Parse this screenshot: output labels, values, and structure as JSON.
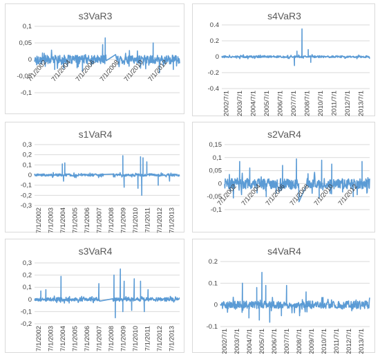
{
  "chart_data": [
    {
      "type": "line",
      "title": "s3VaR3",
      "ylim": [
        -0.1,
        0.1
      ],
      "yticks": [
        "0,1",
        "0,05",
        "0",
        "-0,05",
        "-0,1"
      ],
      "yvals": [
        0.1,
        0.05,
        0,
        -0.05,
        -0.1
      ],
      "xticks": [
        "7/1/2002",
        "7/1/2004",
        "7/1/2006",
        "7/1/2008",
        "7/1/2010",
        "7/1/2012"
      ],
      "x_start": 2002.5,
      "x_end": 2014,
      "noise": 0.013,
      "spikes": [
        [
          2007.9,
          0.045
        ],
        [
          2008.1,
          0.065
        ],
        [
          2011.9,
          0.05
        ],
        [
          2004.1,
          -0.03
        ],
        [
          2006.3,
          -0.035
        ],
        [
          2012.4,
          -0.04
        ],
        [
          2013.5,
          -0.03
        ]
      ],
      "gap": [
        2008.2,
        2008.9
      ],
      "series": [
        {
          "color": "#5b9bd5"
        }
      ]
    },
    {
      "type": "line",
      "title": "s4VaR3",
      "ylim": [
        -0.4,
        0.4
      ],
      "yticks": [
        "0.4",
        "0.2",
        "0",
        "-0.2",
        "-0.4"
      ],
      "yvals": [
        0.4,
        0.2,
        0,
        -0.2,
        -0.4
      ],
      "xticks": [
        "2002/7/1",
        "2003/7/1",
        "2004/7/1",
        "2005/7/1",
        "2006/7/1",
        "2007/7/1",
        "2008/7/1",
        "2010/7/1",
        "2011/7/1",
        "2012/7/1",
        "2013/7/1"
      ],
      "x_start": 2002.5,
      "x_end": 2014.3,
      "noise": 0.012,
      "spikes": [
        [
          2008.9,
          0.35
        ],
        [
          2008.5,
          0.07
        ],
        [
          2009.4,
          0.09
        ],
        [
          2008.3,
          -0.11
        ],
        [
          2009.6,
          -0.07
        ]
      ],
      "gap": null,
      "series": [
        {
          "color": "#5b9bd5"
        }
      ]
    },
    {
      "type": "line",
      "title": "s1VaR4",
      "ylim": [
        -0.3,
        0.3
      ],
      "yticks": [
        "0,3",
        "0,2",
        "0,1",
        "0",
        "-0,1",
        "-0,2",
        "-0,3"
      ],
      "yvals": [
        0.3,
        0.2,
        0.1,
        0,
        -0.1,
        -0.2,
        -0.3
      ],
      "xticks": [
        "7/1/2002",
        "7/1/2003",
        "7/1/2004",
        "7/1/2005",
        "7/1/2006",
        "7/1/2007",
        "7/1/2008",
        "7/1/2009",
        "7/1/2010",
        "7/1/2011",
        "7/1/2012",
        "7/1/2013"
      ],
      "x_start": 2002.5,
      "x_end": 2014,
      "noise": 0.012,
      "spikes": [
        [
          2004.7,
          0.11
        ],
        [
          2004.9,
          0.12
        ],
        [
          2009.5,
          0.19
        ],
        [
          2010.9,
          0.18
        ],
        [
          2011.1,
          0.17
        ],
        [
          2011.4,
          0.13
        ],
        [
          2004.8,
          -0.06
        ],
        [
          2009.6,
          -0.12
        ],
        [
          2010.7,
          -0.13
        ],
        [
          2011.0,
          -0.2
        ],
        [
          2012.3,
          -0.1
        ],
        [
          2013.2,
          -0.06
        ]
      ],
      "gap": [
        2008.0,
        2008.7
      ],
      "series": [
        {
          "color": "#5b9bd5"
        }
      ]
    },
    {
      "type": "line",
      "title": "s2VaR4",
      "ylim": [
        -0.1,
        0.15
      ],
      "yticks": [
        "0,15",
        "0,1",
        "0,05",
        "0",
        "-0,05",
        "-0,1"
      ],
      "yvals": [
        0.15,
        0.1,
        0.05,
        0,
        -0.05,
        -0.1
      ],
      "xticks": [
        "7/1/2002",
        "7/1/2004",
        "7/1/2006",
        "7/1/2008",
        "7/1/2010",
        "7/1/2012"
      ],
      "x_start": 2002.5,
      "x_end": 2014,
      "noise": 0.02,
      "spikes": [
        [
          2003.7,
          0.085
        ],
        [
          2004.5,
          0.06
        ],
        [
          2007.1,
          0.07
        ],
        [
          2008.2,
          0.095
        ],
        [
          2010.2,
          0.09
        ],
        [
          2011.0,
          0.075
        ],
        [
          2013.4,
          0.085
        ],
        [
          2003.2,
          -0.055
        ],
        [
          2005.8,
          -0.05
        ],
        [
          2008.4,
          -0.07
        ],
        [
          2010.0,
          -0.055
        ],
        [
          2012.7,
          -0.05
        ]
      ],
      "gap": [
        2008.4,
        2009.0
      ],
      "series": [
        {
          "color": "#5b9bd5"
        }
      ]
    },
    {
      "type": "line",
      "title": "s3VaR4",
      "ylim": [
        -0.2,
        0.3
      ],
      "yticks": [
        "0,3",
        "0,2",
        "0,1",
        "0",
        "-0,1",
        "-0,2"
      ],
      "yvals": [
        0.3,
        0.2,
        0.1,
        0,
        -0.1,
        -0.2
      ],
      "xticks": [
        "7/1/2002",
        "7/1/2003",
        "7/1/2004",
        "7/1/2005",
        "7/1/2006",
        "7/1/2007",
        "7/1/2008",
        "7/1/2009",
        "7/1/2010",
        "7/1/2011",
        "7/1/2012",
        "7/1/2013"
      ],
      "x_start": 2002.5,
      "x_end": 2014,
      "noise": 0.015,
      "spikes": [
        [
          2004.6,
          0.19
        ],
        [
          2003.0,
          0.07
        ],
        [
          2003.4,
          0.08
        ],
        [
          2007.6,
          0.13
        ],
        [
          2008.8,
          0.2
        ],
        [
          2009.3,
          0.25
        ],
        [
          2009.6,
          0.15
        ],
        [
          2010.4,
          0.17
        ],
        [
          2010.9,
          0.15
        ],
        [
          2011.5,
          0.08
        ],
        [
          2008.9,
          -0.15
        ],
        [
          2009.5,
          -0.1
        ],
        [
          2010.2,
          -0.09
        ],
        [
          2011.2,
          -0.1
        ]
      ],
      "gap": [
        2007.7,
        2008.7
      ],
      "series": [
        {
          "color": "#5b9bd5"
        }
      ]
    },
    {
      "type": "line",
      "title": "s4VaR4",
      "ylim": [
        -0.1,
        0.2
      ],
      "yticks": [
        "0.2",
        "0.1",
        "0",
        "-0.1"
      ],
      "yvals": [
        0.2,
        0.1,
        0,
        -0.1
      ],
      "xticks": [
        "2002/7/1",
        "2003/7/1",
        "2004/7/1",
        "2005/7/1",
        "2006/7/1",
        "2007/7/1",
        "2008/7/1",
        "2009/7/1",
        "2010/7/1",
        "2011/7/1",
        "2012/7/1",
        "2013/7/1"
      ],
      "x_start": 2002.5,
      "x_end": 2014,
      "noise": 0.018,
      "spikes": [
        [
          2004.2,
          0.1
        ],
        [
          2005.3,
          0.08
        ],
        [
          2005.7,
          0.15
        ],
        [
          2006.0,
          0.09
        ],
        [
          2007.6,
          0.09
        ],
        [
          2009.1,
          0.06
        ],
        [
          2004.7,
          -0.06
        ],
        [
          2005.5,
          -0.07
        ],
        [
          2006.3,
          -0.08
        ],
        [
          2007.2,
          -0.05
        ],
        [
          2008.6,
          -0.05
        ]
      ],
      "gap": null,
      "series": [
        {
          "color": "#5b9bd5"
        }
      ]
    }
  ]
}
